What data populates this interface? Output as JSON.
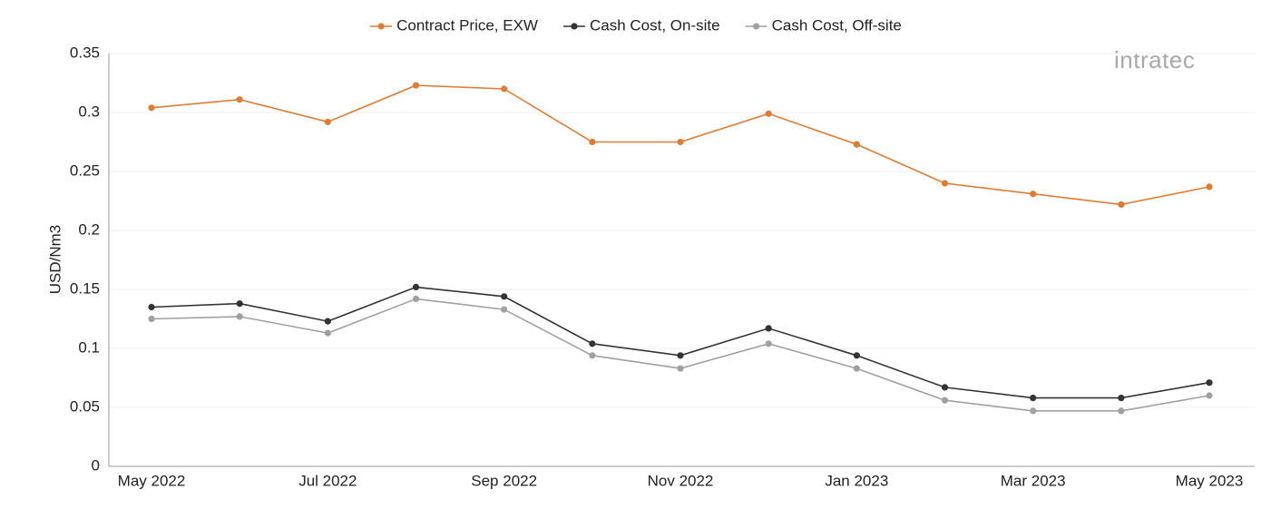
{
  "chart_data": {
    "type": "line",
    "y_label": "USD/Nm3",
    "logo": "intratec",
    "categories": [
      "May 2022",
      null,
      "Jul 2022",
      null,
      "Sep 2022",
      null,
      "Nov 2022",
      null,
      "Jan 2023",
      null,
      "Mar 2023",
      null,
      "May 2023"
    ],
    "series": [
      {
        "name": "Contract Price, EXW",
        "color": "#e07b32",
        "values": [
          0.304,
          0.311,
          0.292,
          0.323,
          0.32,
          0.275,
          0.275,
          0.299,
          0.273,
          0.24,
          0.231,
          0.222,
          0.237
        ]
      },
      {
        "name": "Cash Cost, On-site",
        "color": "#333333",
        "values": [
          0.135,
          0.138,
          0.123,
          0.152,
          0.144,
          0.104,
          0.094,
          0.117,
          0.094,
          0.067,
          0.058,
          0.058,
          0.071
        ]
      },
      {
        "name": "Cash Cost, Off-site",
        "color": "#a0a0a0",
        "values": [
          0.125,
          0.127,
          0.113,
          0.142,
          0.133,
          0.094,
          0.083,
          0.104,
          0.083,
          0.056,
          0.047,
          0.047,
          0.06
        ]
      }
    ],
    "ylim": [
      0,
      0.35
    ],
    "yticks": [
      0,
      0.05,
      0.1,
      0.15,
      0.2,
      0.25,
      0.3,
      0.35
    ],
    "grid": true,
    "legend": "top"
  }
}
